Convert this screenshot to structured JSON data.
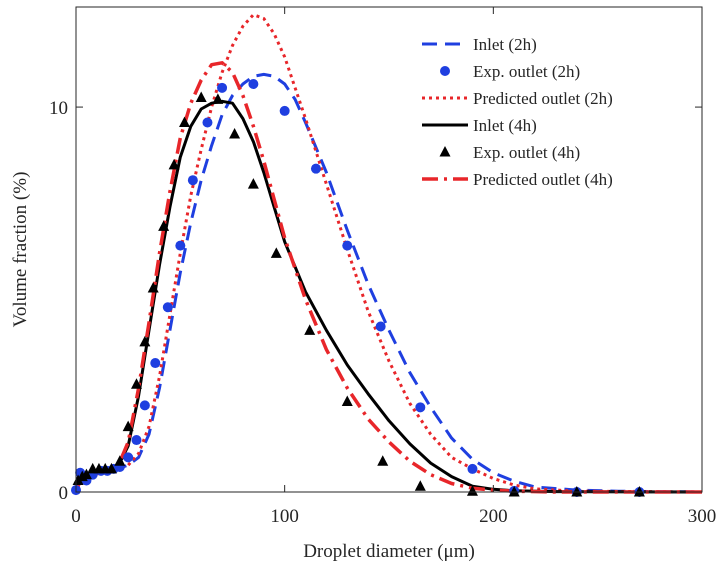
{
  "chart_data": {
    "type": "line",
    "xlabel": "Droplet diameter (μm)",
    "ylabel": "Volume fraction (%)",
    "xlim": [
      0,
      300
    ],
    "ylim": [
      0,
      12.6
    ],
    "xticks": [
      {
        "value": 0,
        "label": "0"
      },
      {
        "value": 100,
        "label": "100"
      },
      {
        "value": 200,
        "label": "200"
      },
      {
        "value": 300,
        "label": "300"
      }
    ],
    "yticks": [
      {
        "value": 0,
        "label": "0"
      },
      {
        "value": 10,
        "label": "10"
      }
    ],
    "grid": false,
    "legend_position": "top-right",
    "series": [
      {
        "name": "Inlet (2h)",
        "kind": "line",
        "color": "#1f3fe0",
        "dash": "dashed",
        "points": [
          [
            0,
            0.0
          ],
          [
            2,
            0.3
          ],
          [
            5,
            0.4
          ],
          [
            8,
            0.45
          ],
          [
            12,
            0.5
          ],
          [
            16,
            0.55
          ],
          [
            20,
            0.6
          ],
          [
            25,
            0.7
          ],
          [
            30,
            0.9
          ],
          [
            35,
            1.5
          ],
          [
            40,
            2.7
          ],
          [
            45,
            4.2
          ],
          [
            50,
            5.7
          ],
          [
            55,
            7.0
          ],
          [
            60,
            8.1
          ],
          [
            65,
            9.0
          ],
          [
            70,
            9.8
          ],
          [
            75,
            10.3
          ],
          [
            80,
            10.6
          ],
          [
            85,
            10.8
          ],
          [
            90,
            10.85
          ],
          [
            95,
            10.8
          ],
          [
            100,
            10.6
          ],
          [
            105,
            10.2
          ],
          [
            110,
            9.6
          ],
          [
            120,
            8.3
          ],
          [
            130,
            6.8
          ],
          [
            140,
            5.4
          ],
          [
            150,
            4.2
          ],
          [
            160,
            3.1
          ],
          [
            170,
            2.2
          ],
          [
            180,
            1.4
          ],
          [
            190,
            0.85
          ],
          [
            200,
            0.5
          ],
          [
            210,
            0.28
          ],
          [
            220,
            0.13
          ],
          [
            240,
            0.05
          ],
          [
            260,
            0.02
          ],
          [
            300,
            0.0
          ]
        ]
      },
      {
        "name": "Exp. outlet (2h)",
        "kind": "markers",
        "marker": "circle",
        "color": "#1f3fe0",
        "points": [
          [
            0,
            0.05
          ],
          [
            2,
            0.5
          ],
          [
            5,
            0.3
          ],
          [
            8,
            0.45
          ],
          [
            12,
            0.55
          ],
          [
            15,
            0.55
          ],
          [
            18,
            0.6
          ],
          [
            21,
            0.65
          ],
          [
            25,
            0.9
          ],
          [
            29,
            1.35
          ],
          [
            33,
            2.25
          ],
          [
            38,
            3.35
          ],
          [
            44,
            4.8
          ],
          [
            50,
            6.4
          ],
          [
            56,
            8.1
          ],
          [
            63,
            9.6
          ],
          [
            70,
            10.5
          ],
          [
            85,
            10.6
          ],
          [
            100,
            9.9
          ],
          [
            115,
            8.4
          ],
          [
            130,
            6.4
          ],
          [
            146,
            4.3
          ],
          [
            165,
            2.2
          ],
          [
            190,
            0.6
          ],
          [
            210,
            0.03
          ],
          [
            240,
            0.0
          ],
          [
            270,
            0.0
          ]
        ]
      },
      {
        "name": "Predicted outlet (2h)",
        "kind": "line",
        "color": "#e8262a",
        "dash": "dotted",
        "points": [
          [
            0,
            0.0
          ],
          [
            2,
            0.3
          ],
          [
            5,
            0.4
          ],
          [
            8,
            0.45
          ],
          [
            12,
            0.5
          ],
          [
            16,
            0.55
          ],
          [
            20,
            0.6
          ],
          [
            25,
            0.7
          ],
          [
            30,
            1.0
          ],
          [
            35,
            1.7
          ],
          [
            40,
            3.0
          ],
          [
            45,
            4.6
          ],
          [
            50,
            6.2
          ],
          [
            55,
            7.7
          ],
          [
            60,
            8.9
          ],
          [
            65,
            10.0
          ],
          [
            70,
            10.9
          ],
          [
            75,
            11.6
          ],
          [
            80,
            12.1
          ],
          [
            85,
            12.4
          ],
          [
            90,
            12.3
          ],
          [
            95,
            11.9
          ],
          [
            100,
            11.3
          ],
          [
            105,
            10.5
          ],
          [
            110,
            9.7
          ],
          [
            120,
            8.0
          ],
          [
            130,
            6.3
          ],
          [
            140,
            4.7
          ],
          [
            150,
            3.4
          ],
          [
            160,
            2.3
          ],
          [
            170,
            1.5
          ],
          [
            180,
            0.9
          ],
          [
            190,
            0.6
          ],
          [
            200,
            0.35
          ],
          [
            210,
            0.18
          ],
          [
            220,
            0.08
          ],
          [
            240,
            0.02
          ],
          [
            300,
            0.0
          ]
        ]
      },
      {
        "name": "Inlet (4h)",
        "kind": "line",
        "color": "#000000",
        "dash": "solid",
        "points": [
          [
            0,
            0.0
          ],
          [
            2,
            0.3
          ],
          [
            5,
            0.4
          ],
          [
            8,
            0.45
          ],
          [
            12,
            0.5
          ],
          [
            16,
            0.55
          ],
          [
            20,
            0.65
          ],
          [
            25,
            1.2
          ],
          [
            30,
            2.5
          ],
          [
            35,
            4.2
          ],
          [
            40,
            5.9
          ],
          [
            45,
            7.4
          ],
          [
            50,
            8.7
          ],
          [
            55,
            9.5
          ],
          [
            60,
            9.95
          ],
          [
            65,
            10.1
          ],
          [
            70,
            10.15
          ],
          [
            75,
            10.1
          ],
          [
            80,
            9.7
          ],
          [
            85,
            9.1
          ],
          [
            90,
            8.3
          ],
          [
            95,
            7.4
          ],
          [
            100,
            6.5
          ],
          [
            110,
            5.2
          ],
          [
            120,
            4.2
          ],
          [
            130,
            3.3
          ],
          [
            140,
            2.55
          ],
          [
            150,
            1.85
          ],
          [
            160,
            1.25
          ],
          [
            170,
            0.75
          ],
          [
            180,
            0.4
          ],
          [
            190,
            0.15
          ],
          [
            200,
            0.07
          ],
          [
            210,
            0.03
          ],
          [
            230,
            0.01
          ],
          [
            300,
            0.0
          ]
        ]
      },
      {
        "name": "Exp. outlet (4h)",
        "kind": "markers",
        "marker": "triangle",
        "color": "#000000",
        "points": [
          [
            1,
            0.3
          ],
          [
            3,
            0.4
          ],
          [
            5,
            0.45
          ],
          [
            8,
            0.6
          ],
          [
            11,
            0.6
          ],
          [
            14,
            0.6
          ],
          [
            17,
            0.6
          ],
          [
            21,
            0.8
          ],
          [
            25,
            1.7
          ],
          [
            29,
            2.8
          ],
          [
            33,
            3.9
          ],
          [
            37,
            5.3
          ],
          [
            42,
            6.9
          ],
          [
            47,
            8.5
          ],
          [
            52,
            9.6
          ],
          [
            60,
            10.25
          ],
          [
            68,
            10.2
          ],
          [
            76,
            9.3
          ],
          [
            85,
            8.0
          ],
          [
            96,
            6.2
          ],
          [
            112,
            4.2
          ],
          [
            130,
            2.35
          ],
          [
            147,
            0.8
          ],
          [
            165,
            0.15
          ],
          [
            190,
            0.02
          ],
          [
            210,
            0.0
          ],
          [
            240,
            0.0
          ],
          [
            270,
            0.0
          ]
        ]
      },
      {
        "name": "Predicted outlet (4h)",
        "kind": "line",
        "color": "#e8262a",
        "dash": "dashdot",
        "points": [
          [
            0,
            0.0
          ],
          [
            2,
            0.3
          ],
          [
            5,
            0.4
          ],
          [
            8,
            0.45
          ],
          [
            12,
            0.5
          ],
          [
            16,
            0.55
          ],
          [
            20,
            0.65
          ],
          [
            25,
            1.3
          ],
          [
            30,
            2.7
          ],
          [
            35,
            4.4
          ],
          [
            40,
            6.2
          ],
          [
            45,
            7.8
          ],
          [
            50,
            9.2
          ],
          [
            55,
            10.1
          ],
          [
            60,
            10.7
          ],
          [
            65,
            11.1
          ],
          [
            70,
            11.15
          ],
          [
            75,
            10.9
          ],
          [
            80,
            10.3
          ],
          [
            85,
            9.5
          ],
          [
            90,
            8.6
          ],
          [
            95,
            7.6
          ],
          [
            100,
            6.6
          ],
          [
            110,
            5.0
          ],
          [
            120,
            3.7
          ],
          [
            130,
            2.7
          ],
          [
            140,
            1.9
          ],
          [
            150,
            1.3
          ],
          [
            160,
            0.8
          ],
          [
            170,
            0.45
          ],
          [
            180,
            0.22
          ],
          [
            190,
            0.1
          ],
          [
            200,
            0.05
          ],
          [
            210,
            0.02
          ],
          [
            230,
            0.0
          ],
          [
            300,
            0.0
          ]
        ]
      }
    ]
  }
}
